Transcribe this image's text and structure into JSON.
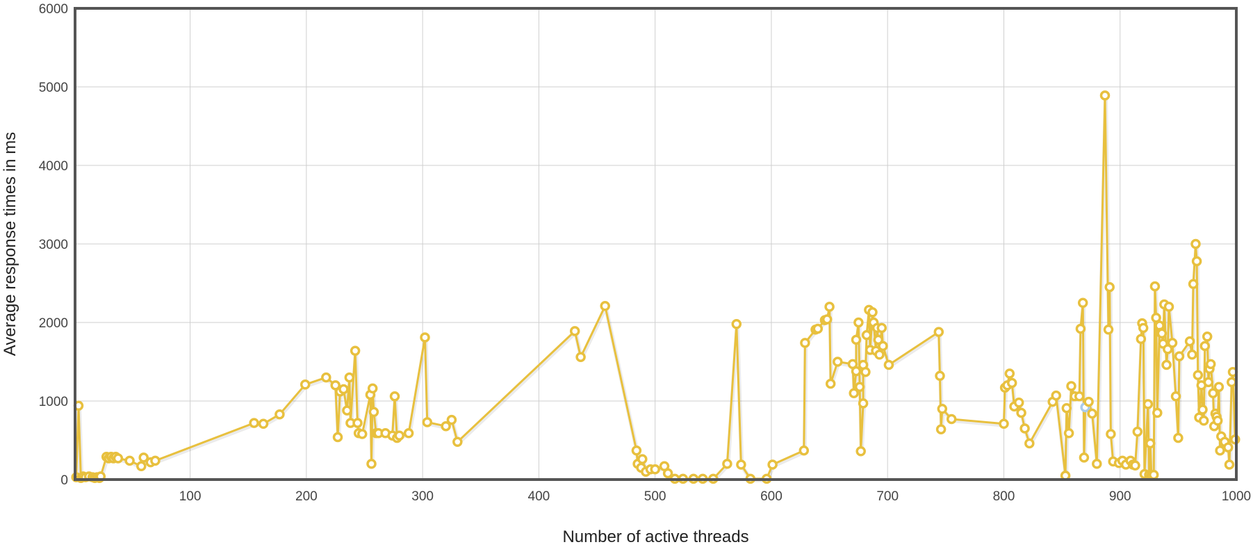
{
  "colors": {
    "series": "#e8c03e",
    "highlight": "#a9cbea",
    "frame": "#555555",
    "grid": "#cfcfcf"
  },
  "chart_data": {
    "type": "line",
    "xlabel": "Number of active threads",
    "ylabel": "Average response times in ms",
    "xlim": [
      1,
      1000
    ],
    "ylim": [
      0,
      6000
    ],
    "xticks": [
      100,
      200,
      300,
      400,
      500,
      600,
      700,
      800,
      900,
      1000
    ],
    "yticks": [
      0,
      1000,
      2000,
      3000,
      4000,
      5000,
      6000
    ],
    "grid": true,
    "legend": "none",
    "highlighted_point": [
      870,
      920
    ],
    "series": [
      {
        "points": [
          [
            2,
            30
          ],
          [
            4,
            940
          ],
          [
            6,
            20
          ],
          [
            8,
            40
          ],
          [
            10,
            30
          ],
          [
            13,
            40
          ],
          [
            16,
            30
          ],
          [
            18,
            20
          ],
          [
            20,
            30
          ],
          [
            22,
            20
          ],
          [
            23,
            40
          ],
          [
            28,
            290
          ],
          [
            30,
            270
          ],
          [
            32,
            290
          ],
          [
            34,
            270
          ],
          [
            36,
            290
          ],
          [
            38,
            270
          ],
          [
            48,
            240
          ],
          [
            58,
            170
          ],
          [
            60,
            280
          ],
          [
            66,
            220
          ],
          [
            70,
            240
          ],
          [
            155,
            720
          ],
          [
            163,
            710
          ],
          [
            177,
            830
          ],
          [
            199,
            1210
          ],
          [
            217,
            1300
          ],
          [
            225,
            1200
          ],
          [
            227,
            540
          ],
          [
            229,
            1120
          ],
          [
            232,
            1150
          ],
          [
            235,
            880
          ],
          [
            237,
            1300
          ],
          [
            238,
            720
          ],
          [
            242,
            1640
          ],
          [
            244,
            720
          ],
          [
            245,
            590
          ],
          [
            248,
            580
          ],
          [
            255,
            1080
          ],
          [
            256,
            200
          ],
          [
            257,
            1160
          ],
          [
            258,
            860
          ],
          [
            260,
            590
          ],
          [
            262,
            590
          ],
          [
            268,
            590
          ],
          [
            274,
            560
          ],
          [
            276,
            1060
          ],
          [
            278,
            530
          ],
          [
            280,
            560
          ],
          [
            288,
            590
          ],
          [
            302,
            1810
          ],
          [
            304,
            730
          ],
          [
            320,
            680
          ],
          [
            325,
            760
          ],
          [
            330,
            480
          ],
          [
            431,
            1890
          ],
          [
            436,
            1560
          ],
          [
            457,
            2210
          ],
          [
            484,
            370
          ],
          [
            485,
            200
          ],
          [
            488,
            150
          ],
          [
            489,
            260
          ],
          [
            492,
            100
          ],
          [
            496,
            130
          ],
          [
            500,
            130
          ],
          [
            508,
            170
          ],
          [
            511,
            80
          ],
          [
            517,
            10
          ],
          [
            524,
            10
          ],
          [
            533,
            10
          ],
          [
            541,
            10
          ],
          [
            550,
            10
          ],
          [
            562,
            200
          ],
          [
            570,
            1980
          ],
          [
            574,
            190
          ],
          [
            582,
            10
          ],
          [
            596,
            10
          ],
          [
            601,
            190
          ],
          [
            628,
            370
          ],
          [
            629,
            1740
          ],
          [
            638,
            1910
          ],
          [
            640,
            1920
          ],
          [
            646,
            2030
          ],
          [
            648,
            2040
          ],
          [
            650,
            2200
          ],
          [
            651,
            1220
          ],
          [
            657,
            1500
          ],
          [
            670,
            1470
          ],
          [
            671,
            1100
          ],
          [
            673,
            1380
          ],
          [
            673,
            1780
          ],
          [
            675,
            2000
          ],
          [
            676,
            1180
          ],
          [
            677,
            360
          ],
          [
            679,
            970
          ],
          [
            679,
            1460
          ],
          [
            681,
            1370
          ],
          [
            682,
            1840
          ],
          [
            684,
            2160
          ],
          [
            685,
            1650
          ],
          [
            687,
            2130
          ],
          [
            688,
            2000
          ],
          [
            690,
            1640
          ],
          [
            691,
            1930
          ],
          [
            692,
            1780
          ],
          [
            693,
            1590
          ],
          [
            695,
            1930
          ],
          [
            696,
            1700
          ],
          [
            701,
            1460
          ],
          [
            744,
            1880
          ],
          [
            745,
            1320
          ],
          [
            746,
            640
          ],
          [
            747,
            900
          ],
          [
            755,
            770
          ],
          [
            800,
            710
          ],
          [
            801,
            1170
          ],
          [
            803,
            1200
          ],
          [
            805,
            1350
          ],
          [
            807,
            1230
          ],
          [
            809,
            930
          ],
          [
            813,
            980
          ],
          [
            815,
            850
          ],
          [
            818,
            650
          ],
          [
            822,
            460
          ],
          [
            842,
            990
          ],
          [
            845,
            1070
          ],
          [
            853,
            50
          ],
          [
            854,
            910
          ],
          [
            856,
            590
          ],
          [
            858,
            1190
          ],
          [
            861,
            1060
          ],
          [
            865,
            1060
          ],
          [
            866,
            1920
          ],
          [
            868,
            2250
          ],
          [
            869,
            280
          ],
          [
            870,
            920
          ],
          [
            873,
            990
          ],
          [
            876,
            840
          ],
          [
            880,
            200
          ],
          [
            887,
            4890
          ],
          [
            890,
            1910
          ],
          [
            891,
            2450
          ],
          [
            892,
            580
          ],
          [
            894,
            230
          ],
          [
            899,
            210
          ],
          [
            902,
            240
          ],
          [
            905,
            190
          ],
          [
            909,
            240
          ],
          [
            911,
            190
          ],
          [
            913,
            180
          ],
          [
            915,
            610
          ],
          [
            918,
            1790
          ],
          [
            919,
            1990
          ],
          [
            920,
            1930
          ],
          [
            921,
            70
          ],
          [
            924,
            960
          ],
          [
            925,
            60
          ],
          [
            926,
            460
          ],
          [
            927,
            50
          ],
          [
            929,
            60
          ],
          [
            930,
            2460
          ],
          [
            931,
            2060
          ],
          [
            932,
            850
          ],
          [
            934,
            1960
          ],
          [
            935,
            1870
          ],
          [
            936,
            1860
          ],
          [
            937,
            1730
          ],
          [
            938,
            2230
          ],
          [
            940,
            1460
          ],
          [
            941,
            1660
          ],
          [
            942,
            2200
          ],
          [
            945,
            1740
          ],
          [
            948,
            1060
          ],
          [
            950,
            530
          ],
          [
            951,
            1570
          ],
          [
            960,
            1760
          ],
          [
            962,
            1590
          ],
          [
            963,
            2490
          ],
          [
            965,
            3000
          ],
          [
            966,
            2780
          ],
          [
            967,
            1330
          ],
          [
            968,
            790
          ],
          [
            970,
            1200
          ],
          [
            971,
            890
          ],
          [
            972,
            750
          ],
          [
            973,
            1700
          ],
          [
            975,
            1820
          ],
          [
            976,
            1240
          ],
          [
            977,
            1410
          ],
          [
            978,
            1470
          ],
          [
            980,
            1100
          ],
          [
            981,
            680
          ],
          [
            982,
            840
          ],
          [
            983,
            800
          ],
          [
            984,
            750
          ],
          [
            985,
            1180
          ],
          [
            986,
            370
          ],
          [
            987,
            550
          ],
          [
            990,
            480
          ],
          [
            993,
            410
          ],
          [
            994,
            190
          ],
          [
            996,
            1240
          ],
          [
            997,
            1370
          ],
          [
            999,
            510
          ]
        ]
      }
    ]
  }
}
